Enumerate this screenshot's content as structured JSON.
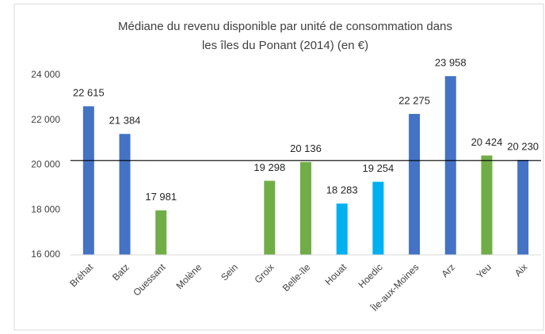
{
  "chart_data": {
    "type": "bar",
    "title": [
      "Médiane du revenu disponible par unité de consommation dans",
      "les îles du Ponant (2014) (en €)"
    ],
    "categories": [
      "Bréhat",
      "Batz",
      "Ouessant",
      "Molène",
      "Sein",
      "Groix",
      "Belle-île",
      "Houat",
      "Hoedic",
      "Île-aux-Moines",
      "Arz",
      "Yeu",
      "Aix"
    ],
    "values": [
      22615,
      21384,
      17981,
      null,
      null,
      19298,
      20136,
      18283,
      19254,
      22275,
      23958,
      20424,
      20230
    ],
    "value_labels": [
      "22 615",
      "21 384",
      "17 981",
      null,
      null,
      "19 298",
      "20 136",
      "18 283",
      "19 254",
      "22 275",
      "23 958",
      "20 424",
      "20 230"
    ],
    "colors": [
      "#4472c4",
      "#4472c4",
      "#70ad47",
      "#70ad47",
      "#70ad47",
      "#70ad47",
      "#70ad47",
      "#00b0f0",
      "#00b0f0",
      "#4472c4",
      "#4472c4",
      "#70ad47",
      "#4472c4"
    ],
    "ylim": [
      16000,
      24000
    ],
    "yticks": [
      {
        "value": 16000,
        "label": "16 000"
      },
      {
        "value": 18000,
        "label": "18 000"
      },
      {
        "value": 20000,
        "label": "20 000"
      },
      {
        "value": 22000,
        "label": "22 000"
      },
      {
        "value": 24000,
        "label": "24 000"
      }
    ],
    "reference_line": 20200,
    "grid": false
  }
}
